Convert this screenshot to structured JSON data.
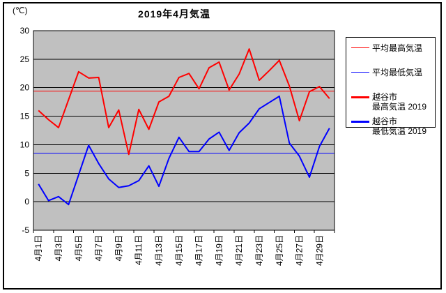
{
  "title": "2019年4月気温",
  "y_unit": "(℃)",
  "legend": [
    {
      "label": "平均最高気温",
      "color": "#ff0000",
      "thick": false
    },
    {
      "label": "平均最低気温",
      "color": "#0000ff",
      "thick": false
    },
    {
      "label": "越谷市\n最高気温 2019",
      "color": "#ff0000",
      "thick": true
    },
    {
      "label": "越谷市\n最低気温 2019",
      "color": "#0000ff",
      "thick": true
    }
  ],
  "chart_data": {
    "type": "line",
    "title": "2019年4月気温",
    "x": [
      1,
      2,
      3,
      4,
      5,
      6,
      7,
      8,
      9,
      10,
      11,
      12,
      13,
      14,
      15,
      16,
      17,
      18,
      19,
      20,
      21,
      22,
      23,
      24,
      25,
      26,
      27,
      28,
      29,
      30
    ],
    "xtick_labels": [
      "4月1日",
      "4月3日",
      "4月5日",
      "4月7日",
      "4月9日",
      "4月11日",
      "4月13日",
      "4月15日",
      "4月17日",
      "4月19日",
      "4月21日",
      "4月23日",
      "4月25日",
      "4月27日",
      "4月29日"
    ],
    "ylim": [
      -5,
      30
    ],
    "ytick_step": 5,
    "plot_bg": "#c0c0c0",
    "grid": true,
    "legend_position": "right",
    "series": [
      {
        "name": "平均最高気温",
        "color": "#ff0000",
        "width": 1,
        "constant": 19.4
      },
      {
        "name": "平均最低気温",
        "color": "#0000ff",
        "width": 1,
        "constant": 8.5
      },
      {
        "name": "越谷市最高気温2019",
        "color": "#ff0000",
        "width": 2,
        "values": [
          16,
          14.4,
          13,
          17.9,
          22.8,
          21.7,
          21.8,
          13,
          16.1,
          8.3,
          16.2,
          12.7,
          17.5,
          18.5,
          21.8,
          22.5,
          19.8,
          23.5,
          24.5,
          19.6,
          22.4,
          26.8,
          21.3,
          23,
          24.8,
          20.3,
          14.2,
          19.3,
          20.2,
          18.1
        ]
      },
      {
        "name": "越谷市最低気温2019",
        "color": "#0000ff",
        "width": 2,
        "values": [
          3.1,
          0.2,
          0.9,
          -0.5,
          4.7,
          9.9,
          6.7,
          4,
          2.5,
          2.8,
          3.7,
          6.3,
          2.7,
          7.6,
          11.3,
          8.8,
          8.8,
          11,
          12.2,
          9,
          12.1,
          13.8,
          16.3,
          17.4,
          18.5,
          10.3,
          8,
          4.3,
          9.7,
          12.9
        ]
      }
    ]
  }
}
